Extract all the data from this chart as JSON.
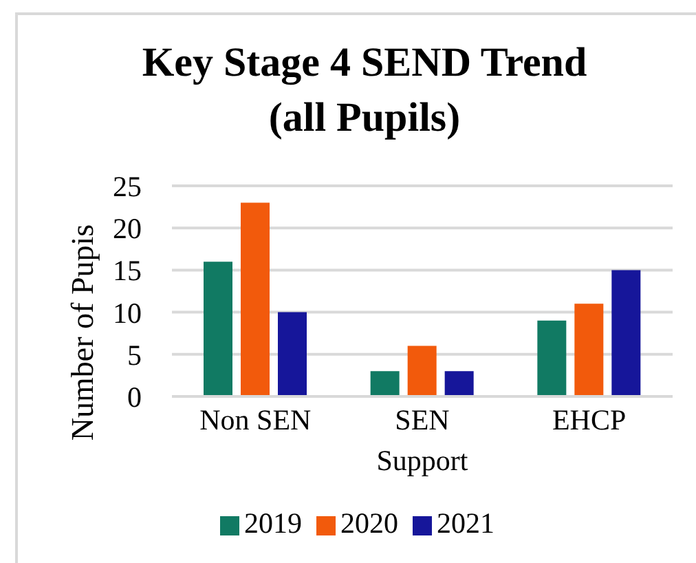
{
  "chart_data": {
    "type": "bar",
    "title": "Key Stage 4 SEND Trend (all Pupils)",
    "ylabel": "Number of Pupis",
    "categories": [
      "Non SEN",
      "SEN Support",
      "EHCP"
    ],
    "series": [
      {
        "name": "2019",
        "color": "#117a63",
        "values": [
          16,
          3,
          9
        ]
      },
      {
        "name": "2020",
        "color": "#f25a0c",
        "values": [
          23,
          6,
          11
        ]
      },
      {
        "name": "2021",
        "color": "#16169a",
        "values": [
          10,
          3,
          15
        ]
      }
    ],
    "ylim": [
      0,
      25
    ],
    "yticks": [
      0,
      5,
      10,
      15,
      20,
      25
    ],
    "grid": "y",
    "legend": "bottom"
  }
}
